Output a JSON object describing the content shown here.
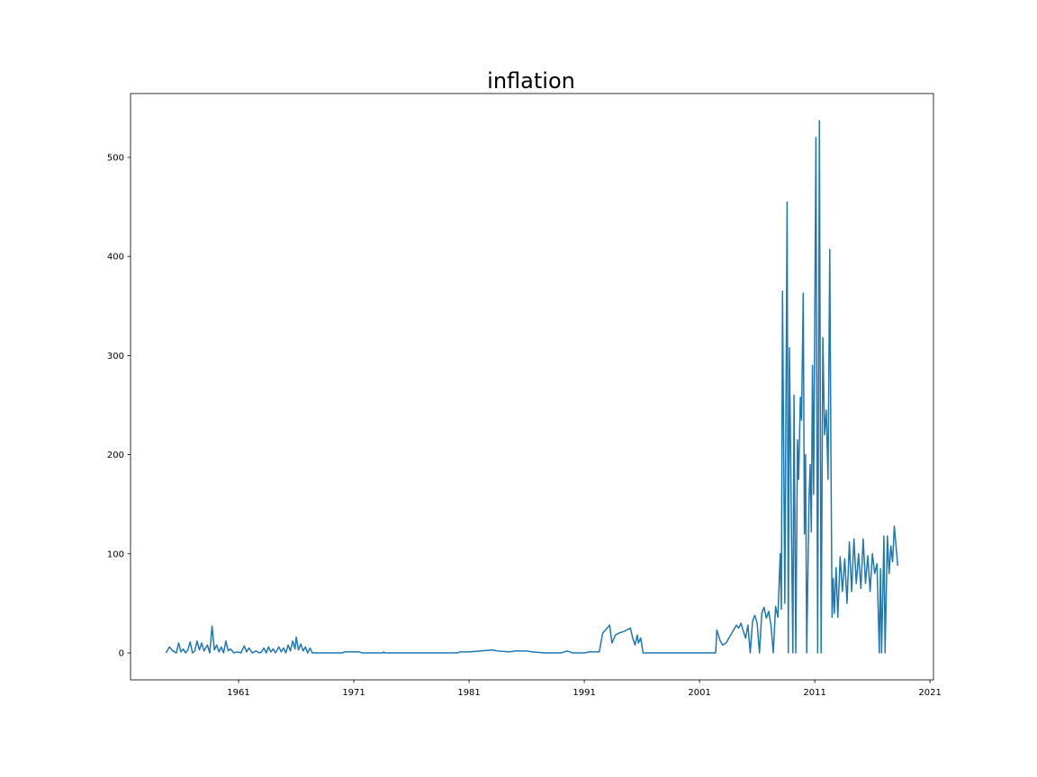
{
  "chart_data": {
    "type": "line",
    "title": "inflation",
    "color": "#1f77b4",
    "xlim": [
      1951.625,
      2021.3
    ],
    "xticks": [
      1961,
      1971,
      1981,
      1991,
      2001,
      2011,
      2021
    ],
    "ylim": [
      -27.2,
      564.4
    ],
    "yticks": [
      0,
      100,
      200,
      300,
      400,
      500
    ],
    "x": [
      1954.7,
      1955.0,
      1955.3,
      1955.6,
      1955.8,
      1956.0,
      1956.2,
      1956.4,
      1956.6,
      1956.8,
      1957.0,
      1957.2,
      1957.4,
      1957.6,
      1957.8,
      1958.0,
      1958.3,
      1958.5,
      1958.7,
      1958.9,
      1959.1,
      1959.3,
      1959.5,
      1959.7,
      1959.9,
      1960.1,
      1960.3,
      1960.6,
      1960.9,
      1961.2,
      1961.5,
      1961.7,
      1961.9,
      1962.2,
      1962.5,
      1962.8,
      1963.0,
      1963.2,
      1963.4,
      1963.6,
      1963.8,
      1964.0,
      1964.2,
      1964.5,
      1964.7,
      1964.9,
      1965.1,
      1965.3,
      1965.5,
      1965.7,
      1965.9,
      1966.0,
      1966.2,
      1966.4,
      1966.6,
      1966.8,
      1967.0,
      1967.2,
      1967.4,
      1970.0,
      1970.2,
      1971.5,
      1971.7,
      1973.5,
      1973.6,
      1973.7,
      1978.0,
      1980.0,
      1980.2,
      1981.0,
      1982.0,
      1983.0,
      1983.5,
      1984.5,
      1985.0,
      1986.0,
      1986.5,
      1987.5,
      1989.0,
      1989.5,
      1990.0,
      1991.0,
      1991.5,
      1992.3,
      1992.6,
      1993.2,
      1993.4,
      1993.7,
      1994.0,
      1994.5,
      1995.0,
      1995.2,
      1995.4,
      1995.6,
      1995.7,
      1995.9,
      1996.1,
      2002.4,
      2002.5,
      2002.8,
      2003.0,
      2003.3,
      2003.8,
      2004.2,
      2004.4,
      2004.6,
      2004.8,
      2005.0,
      2005.2,
      2005.4,
      2005.6,
      2005.8,
      2006.0,
      2006.2,
      2006.4,
      2006.6,
      2006.8,
      2007.0,
      2007.2,
      2007.4,
      2007.6,
      2007.8,
      2008.0,
      2008.1,
      2008.2,
      2008.4,
      2008.6,
      2008.7,
      2008.8,
      2009.0,
      2009.1,
      2009.2,
      2009.35,
      2009.5,
      2009.6,
      2009.75,
      2009.85,
      2010.0,
      2010.1,
      2010.2,
      2010.3,
      2010.5,
      2010.6,
      2010.7,
      2010.8,
      2010.9,
      2011.1,
      2011.25,
      2011.4,
      2011.55,
      2011.7,
      2011.85,
      2012.0,
      2012.15,
      2012.3,
      2012.4,
      2012.5,
      2012.6,
      2012.7,
      2012.85,
      2013.0,
      2013.2,
      2013.4,
      2013.6,
      2013.8,
      2014.0,
      2014.2,
      2014.4,
      2014.6,
      2014.8,
      2015.0,
      2015.2,
      2015.4,
      2015.6,
      2015.8,
      2016.0,
      2016.2,
      2016.4,
      2016.6,
      2016.7,
      2016.8,
      2017.0,
      2017.1,
      2017.3,
      2017.45,
      2017.6,
      2017.75,
      2017.9,
      2018.2
    ],
    "values": [
      0,
      6,
      2,
      0,
      10,
      1,
      4,
      0,
      3,
      11,
      0,
      2,
      12,
      3,
      10,
      2,
      8,
      0,
      27,
      3,
      8,
      1,
      6,
      0,
      12,
      2,
      4,
      0,
      1,
      0,
      7,
      1,
      5,
      0,
      2,
      0,
      1,
      5,
      0,
      6,
      1,
      4,
      0,
      6,
      1,
      5,
      0,
      8,
      2,
      12,
      4,
      16,
      3,
      9,
      2,
      6,
      0,
      5,
      0,
      0,
      1,
      1,
      0,
      0,
      1,
      0,
      0,
      0,
      1,
      1,
      2,
      3,
      2,
      1,
      2,
      2,
      1,
      0,
      0,
      2,
      0,
      0,
      1,
      1,
      20,
      28,
      10,
      18,
      20,
      22,
      25,
      15,
      8,
      18,
      10,
      15,
      0,
      0,
      23,
      12,
      8,
      10,
      20,
      28,
      25,
      30,
      22,
      15,
      28,
      0,
      32,
      38,
      30,
      0,
      40,
      46,
      35,
      42,
      28,
      0,
      47,
      36,
      100,
      44,
      365,
      50,
      455,
      0,
      308,
      100,
      0,
      260,
      0,
      215,
      175,
      258,
      235,
      363,
      120,
      200,
      0,
      155,
      190,
      122,
      290,
      160,
      520,
      0,
      537,
      0,
      318,
      220,
      245,
      175,
      407,
      200,
      36,
      75,
      40,
      86,
      36,
      97,
      62,
      95,
      50,
      112,
      62,
      115,
      70,
      100,
      65,
      115,
      70,
      98,
      62,
      100,
      80,
      90,
      0,
      85,
      0,
      118,
      0,
      118,
      80,
      108,
      92,
      128,
      88
    ]
  }
}
